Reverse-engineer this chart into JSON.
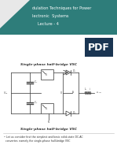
{
  "bg_color": "#ffffff",
  "header_bg": "#2e7d7a",
  "header_text_color": "#ffffff",
  "header_lines": [
    "dulation Techniques for Power",
    "lectronic  Systems",
    "Lecture - 4"
  ],
  "pdf_badge_bg": "#1a3552",
  "pdf_badge_text": "PDF",
  "circuit_title": "Single-phase half-bridge VSC",
  "bottom_title": "Single-phase half-bridge VSC",
  "bottom_text": "• Let us consider first the simplest and basic solid-state DC-AC\n  converter, namely the single-phase half-bridge VSC",
  "circuit_color": "#444444",
  "body_bg": "#f5f5f5"
}
